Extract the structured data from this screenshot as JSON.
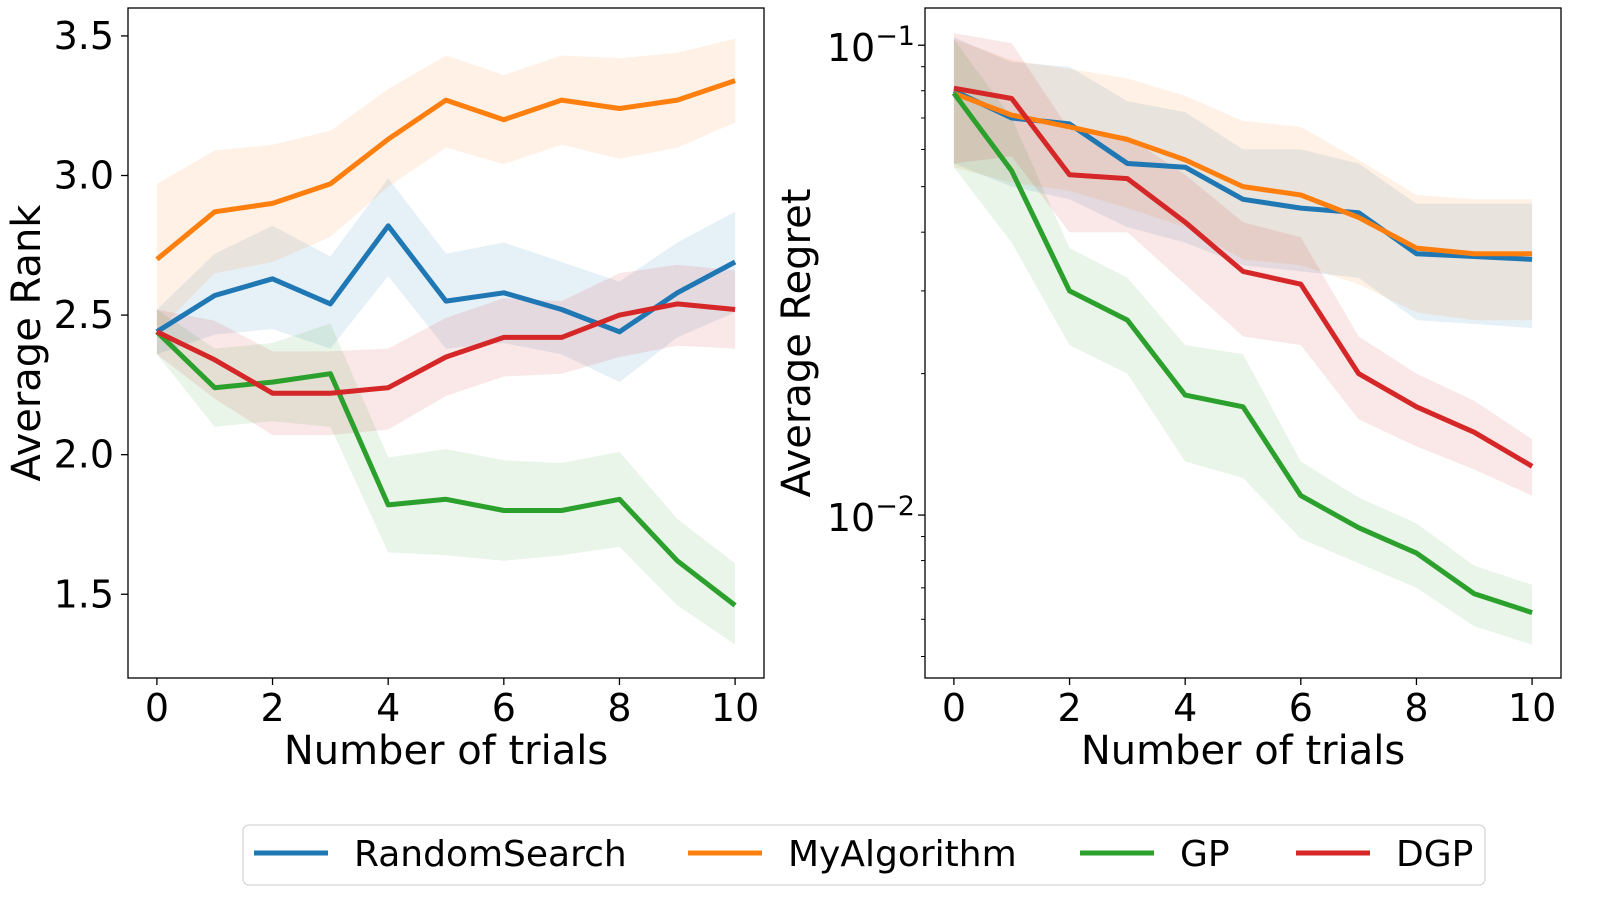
{
  "chart_data": [
    {
      "type": "line",
      "xlabel": "Number of trials",
      "ylabel": "Average Rank",
      "xlim": [
        -0.5,
        10.5
      ],
      "ylim": [
        1.2,
        3.6
      ],
      "yscale": "linear",
      "xticks": [
        0,
        2,
        4,
        6,
        8,
        10
      ],
      "xtick_labels": [
        "0",
        "2",
        "4",
        "6",
        "8",
        "10"
      ],
      "yticks": [
        1.5,
        2.0,
        2.5,
        3.0,
        3.5
      ],
      "ytick_labels": [
        "1.5",
        "2.0",
        "2.5",
        "3.0",
        "3.5"
      ],
      "grid": false,
      "x": [
        0,
        1,
        2,
        3,
        4,
        5,
        6,
        7,
        8,
        9,
        10
      ],
      "series": [
        {
          "name": "RandomSearch",
          "color": "#1f77b4",
          "values": [
            2.44,
            2.57,
            2.63,
            2.54,
            2.82,
            2.55,
            2.58,
            2.52,
            2.44,
            2.58,
            2.69
          ],
          "lower": [
            2.36,
            2.43,
            2.45,
            2.38,
            2.64,
            2.38,
            2.4,
            2.36,
            2.26,
            2.42,
            2.51
          ],
          "upper": [
            2.52,
            2.72,
            2.82,
            2.71,
            2.99,
            2.72,
            2.76,
            2.69,
            2.62,
            2.76,
            2.87
          ]
        },
        {
          "name": "MyAlgorithm",
          "color": "#ff7f0e",
          "values": [
            2.7,
            2.87,
            2.9,
            2.97,
            3.13,
            3.27,
            3.2,
            3.27,
            3.24,
            3.27,
            3.34
          ],
          "lower": [
            2.44,
            2.65,
            2.69,
            2.78,
            2.96,
            3.1,
            3.04,
            3.11,
            3.06,
            3.1,
            3.19
          ],
          "upper": [
            2.97,
            3.09,
            3.11,
            3.16,
            3.31,
            3.43,
            3.36,
            3.43,
            3.42,
            3.44,
            3.49
          ]
        },
        {
          "name": "GP",
          "color": "#2ca02c",
          "values": [
            2.44,
            2.24,
            2.26,
            2.29,
            1.82,
            1.84,
            1.8,
            1.8,
            1.84,
            1.62,
            1.46
          ],
          "lower": [
            2.36,
            2.1,
            2.12,
            2.1,
            1.65,
            1.64,
            1.62,
            1.64,
            1.67,
            1.46,
            1.32
          ],
          "upper": [
            2.52,
            2.38,
            2.4,
            2.47,
            1.99,
            2.02,
            1.98,
            1.97,
            2.01,
            1.77,
            1.61
          ]
        },
        {
          "name": "DGP",
          "color": "#d62728",
          "values": [
            2.44,
            2.34,
            2.22,
            2.22,
            2.24,
            2.35,
            2.42,
            2.42,
            2.5,
            2.54,
            2.52
          ],
          "lower": [
            2.36,
            2.2,
            2.07,
            2.07,
            2.09,
            2.21,
            2.28,
            2.29,
            2.35,
            2.39,
            2.38
          ],
          "upper": [
            2.52,
            2.48,
            2.37,
            2.37,
            2.38,
            2.49,
            2.56,
            2.55,
            2.65,
            2.68,
            2.66
          ]
        }
      ]
    },
    {
      "type": "line",
      "xlabel": "Number of trials",
      "ylabel": "Average Regret",
      "xlim": [
        -0.5,
        10.5
      ],
      "ylim": [
        0.0045,
        0.12
      ],
      "yscale": "log",
      "xticks": [
        0,
        2,
        4,
        6,
        8,
        10
      ],
      "xtick_labels": [
        "0",
        "2",
        "4",
        "6",
        "8",
        "10"
      ],
      "yticks": [
        0.01,
        0.1
      ],
      "ytick_labels": [
        {
          "base": "10",
          "exp": "−2"
        },
        {
          "base": "10",
          "exp": "−1"
        }
      ],
      "grid": false,
      "x": [
        0,
        1,
        2,
        3,
        4,
        5,
        6,
        7,
        8,
        9,
        10
      ],
      "series": [
        {
          "name": "RandomSearch",
          "color": "#1f77b4",
          "values": [
            0.08,
            0.07,
            0.068,
            0.056,
            0.055,
            0.047,
            0.045,
            0.044,
            0.036,
            0.0355,
            0.035
          ],
          "lower": [
            0.056,
            0.05,
            0.047,
            0.041,
            0.038,
            0.034,
            0.033,
            0.032,
            0.026,
            0.0255,
            0.025
          ],
          "upper": [
            0.104,
            0.092,
            0.09,
            0.076,
            0.072,
            0.06,
            0.06,
            0.056,
            0.046,
            0.046,
            0.046
          ]
        },
        {
          "name": "MyAlgorithm",
          "color": "#ff7f0e",
          "values": [
            0.079,
            0.071,
            0.067,
            0.063,
            0.057,
            0.05,
            0.048,
            0.043,
            0.037,
            0.036,
            0.036
          ],
          "lower": [
            0.055,
            0.051,
            0.049,
            0.045,
            0.041,
            0.035,
            0.034,
            0.031,
            0.027,
            0.026,
            0.026
          ],
          "upper": [
            0.103,
            0.093,
            0.089,
            0.085,
            0.078,
            0.069,
            0.067,
            0.057,
            0.048,
            0.047,
            0.047
          ]
        },
        {
          "name": "GP",
          "color": "#2ca02c",
          "values": [
            0.079,
            0.054,
            0.03,
            0.026,
            0.018,
            0.017,
            0.011,
            0.0094,
            0.0083,
            0.0068,
            0.0062
          ],
          "lower": [
            0.055,
            0.038,
            0.023,
            0.02,
            0.013,
            0.012,
            0.0089,
            0.0079,
            0.007,
            0.0058,
            0.0053
          ],
          "upper": [
            0.103,
            0.07,
            0.037,
            0.032,
            0.023,
            0.022,
            0.013,
            0.0109,
            0.0096,
            0.0078,
            0.0071
          ]
        },
        {
          "name": "DGP",
          "color": "#d62728",
          "values": [
            0.081,
            0.077,
            0.053,
            0.052,
            0.042,
            0.033,
            0.031,
            0.02,
            0.017,
            0.015,
            0.0127
          ],
          "lower": [
            0.056,
            0.058,
            0.04,
            0.04,
            0.031,
            0.024,
            0.023,
            0.016,
            0.014,
            0.0125,
            0.011
          ],
          "upper": [
            0.106,
            0.101,
            0.066,
            0.064,
            0.053,
            0.042,
            0.039,
            0.024,
            0.02,
            0.0175,
            0.0145
          ]
        }
      ]
    }
  ],
  "legend": {
    "placement": "bottom-center",
    "items": [
      {
        "label": "RandomSearch",
        "color": "#1f77b4"
      },
      {
        "label": "MyAlgorithm",
        "color": "#ff7f0e"
      },
      {
        "label": "GP",
        "color": "#2ca02c"
      },
      {
        "label": "DGP",
        "color": "#d62728"
      }
    ]
  }
}
